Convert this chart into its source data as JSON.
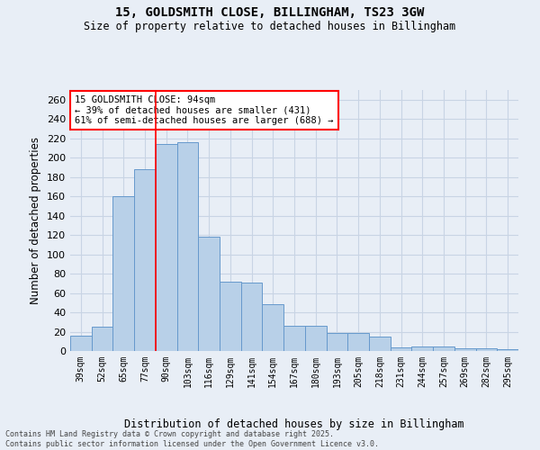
{
  "title_line1": "15, GOLDSMITH CLOSE, BILLINGHAM, TS23 3GW",
  "title_line2": "Size of property relative to detached houses in Billingham",
  "xlabel": "Distribution of detached houses by size in Billingham",
  "ylabel": "Number of detached properties",
  "categories": [
    "39sqm",
    "52sqm",
    "65sqm",
    "77sqm",
    "90sqm",
    "103sqm",
    "116sqm",
    "129sqm",
    "141sqm",
    "154sqm",
    "167sqm",
    "180sqm",
    "193sqm",
    "205sqm",
    "218sqm",
    "231sqm",
    "244sqm",
    "257sqm",
    "269sqm",
    "282sqm",
    "295sqm"
  ],
  "values": [
    16,
    25,
    160,
    188,
    214,
    216,
    118,
    72,
    71,
    48,
    26,
    26,
    19,
    19,
    15,
    4,
    5,
    5,
    3,
    3,
    2
  ],
  "bar_color": "#b8d0e8",
  "bar_edgecolor": "#6699cc",
  "grid_color": "#c8d4e4",
  "bg_color": "#e8eef6",
  "vline_color": "red",
  "vline_x_idx": 4,
  "annotation_text": "15 GOLDSMITH CLOSE: 94sqm\n← 39% of detached houses are smaller (431)\n61% of semi-detached houses are larger (688) →",
  "annotation_box_color": "white",
  "annotation_box_edgecolor": "red",
  "footnote": "Contains HM Land Registry data © Crown copyright and database right 2025.\nContains public sector information licensed under the Open Government Licence v3.0.",
  "ylim": [
    0,
    270
  ],
  "yticks": [
    0,
    20,
    40,
    60,
    80,
    100,
    120,
    140,
    160,
    180,
    200,
    220,
    240,
    260
  ]
}
